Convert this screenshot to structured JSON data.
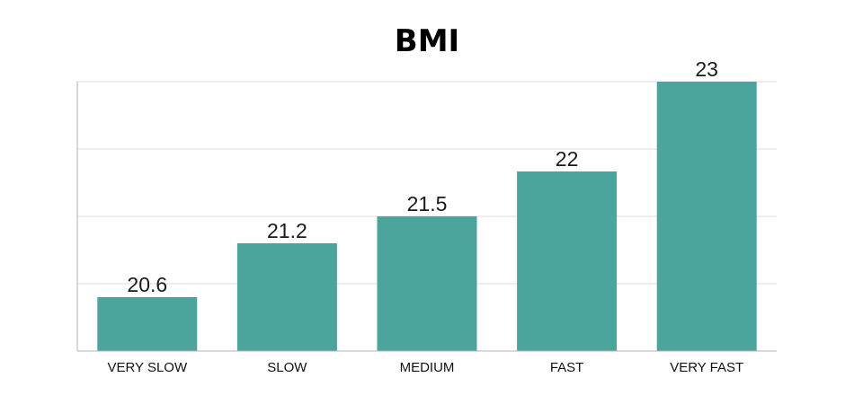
{
  "chart_data": {
    "type": "bar",
    "title": "BMI",
    "xlabel": "",
    "ylabel": "",
    "categories": [
      "VERY SLOW",
      "SLOW",
      "MEDIUM",
      "FAST",
      "VERY FAST"
    ],
    "values": [
      20.6,
      21.2,
      21.5,
      22,
      23
    ],
    "value_labels": [
      "20.6",
      "21.2",
      "21.5",
      "22",
      "23"
    ],
    "ylim": [
      20,
      23
    ],
    "grid": true,
    "legend": "none",
    "bar_color": "#4ba59d",
    "grid_color": "#dcdcdc",
    "axis_color": "#b3b3b3"
  }
}
